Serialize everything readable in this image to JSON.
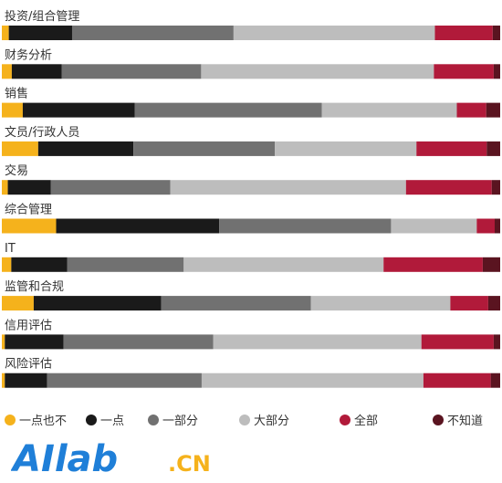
{
  "chart_data": {
    "type": "bar",
    "orientation": "horizontal",
    "stacked": true,
    "normalized": true,
    "categories": [
      "投资/组合管理",
      "财务分析",
      "销售",
      "文员/行政人员",
      "交易",
      "综合管理",
      "IT",
      "监管和合规",
      "信用评估",
      "风险评估"
    ],
    "series": [
      {
        "name": "一点也不",
        "color": "#f5b21c",
        "values": [
          1.4,
          2.0,
          4.2,
          7.3,
          1.2,
          10.9,
          1.9,
          6.4,
          0.6,
          0.6
        ]
      },
      {
        "name": "一点",
        "color": "#1a1a1a",
        "values": [
          12.7,
          10.0,
          22.5,
          19.1,
          8.6,
          32.7,
          11.2,
          25.6,
          11.8,
          8.5
        ]
      },
      {
        "name": "一部分",
        "color": "#717171",
        "values": [
          32.4,
          28.0,
          37.5,
          28.4,
          24.0,
          34.5,
          23.4,
          30.0,
          30.0,
          31.0
        ]
      },
      {
        "name": "大部分",
        "color": "#bdbdbd",
        "values": [
          40.4,
          46.7,
          27.1,
          28.4,
          47.3,
          17.2,
          40.1,
          28.0,
          41.8,
          44.5
        ]
      },
      {
        "name": "全部",
        "color": "#b11a3a",
        "values": [
          11.6,
          12.0,
          5.9,
          14.1,
          17.2,
          3.6,
          19.9,
          7.6,
          14.5,
          13.5
        ]
      },
      {
        "name": "不知道",
        "color": "#5a1420",
        "values": [
          1.5,
          1.3,
          2.8,
          2.7,
          1.7,
          1.1,
          3.5,
          2.4,
          1.3,
          1.9
        ]
      }
    ],
    "xlim": [
      0,
      100
    ],
    "grid": false,
    "legend_position": "bottom"
  },
  "logo": {
    "main": "AIlab",
    "suffix": ".CN"
  }
}
